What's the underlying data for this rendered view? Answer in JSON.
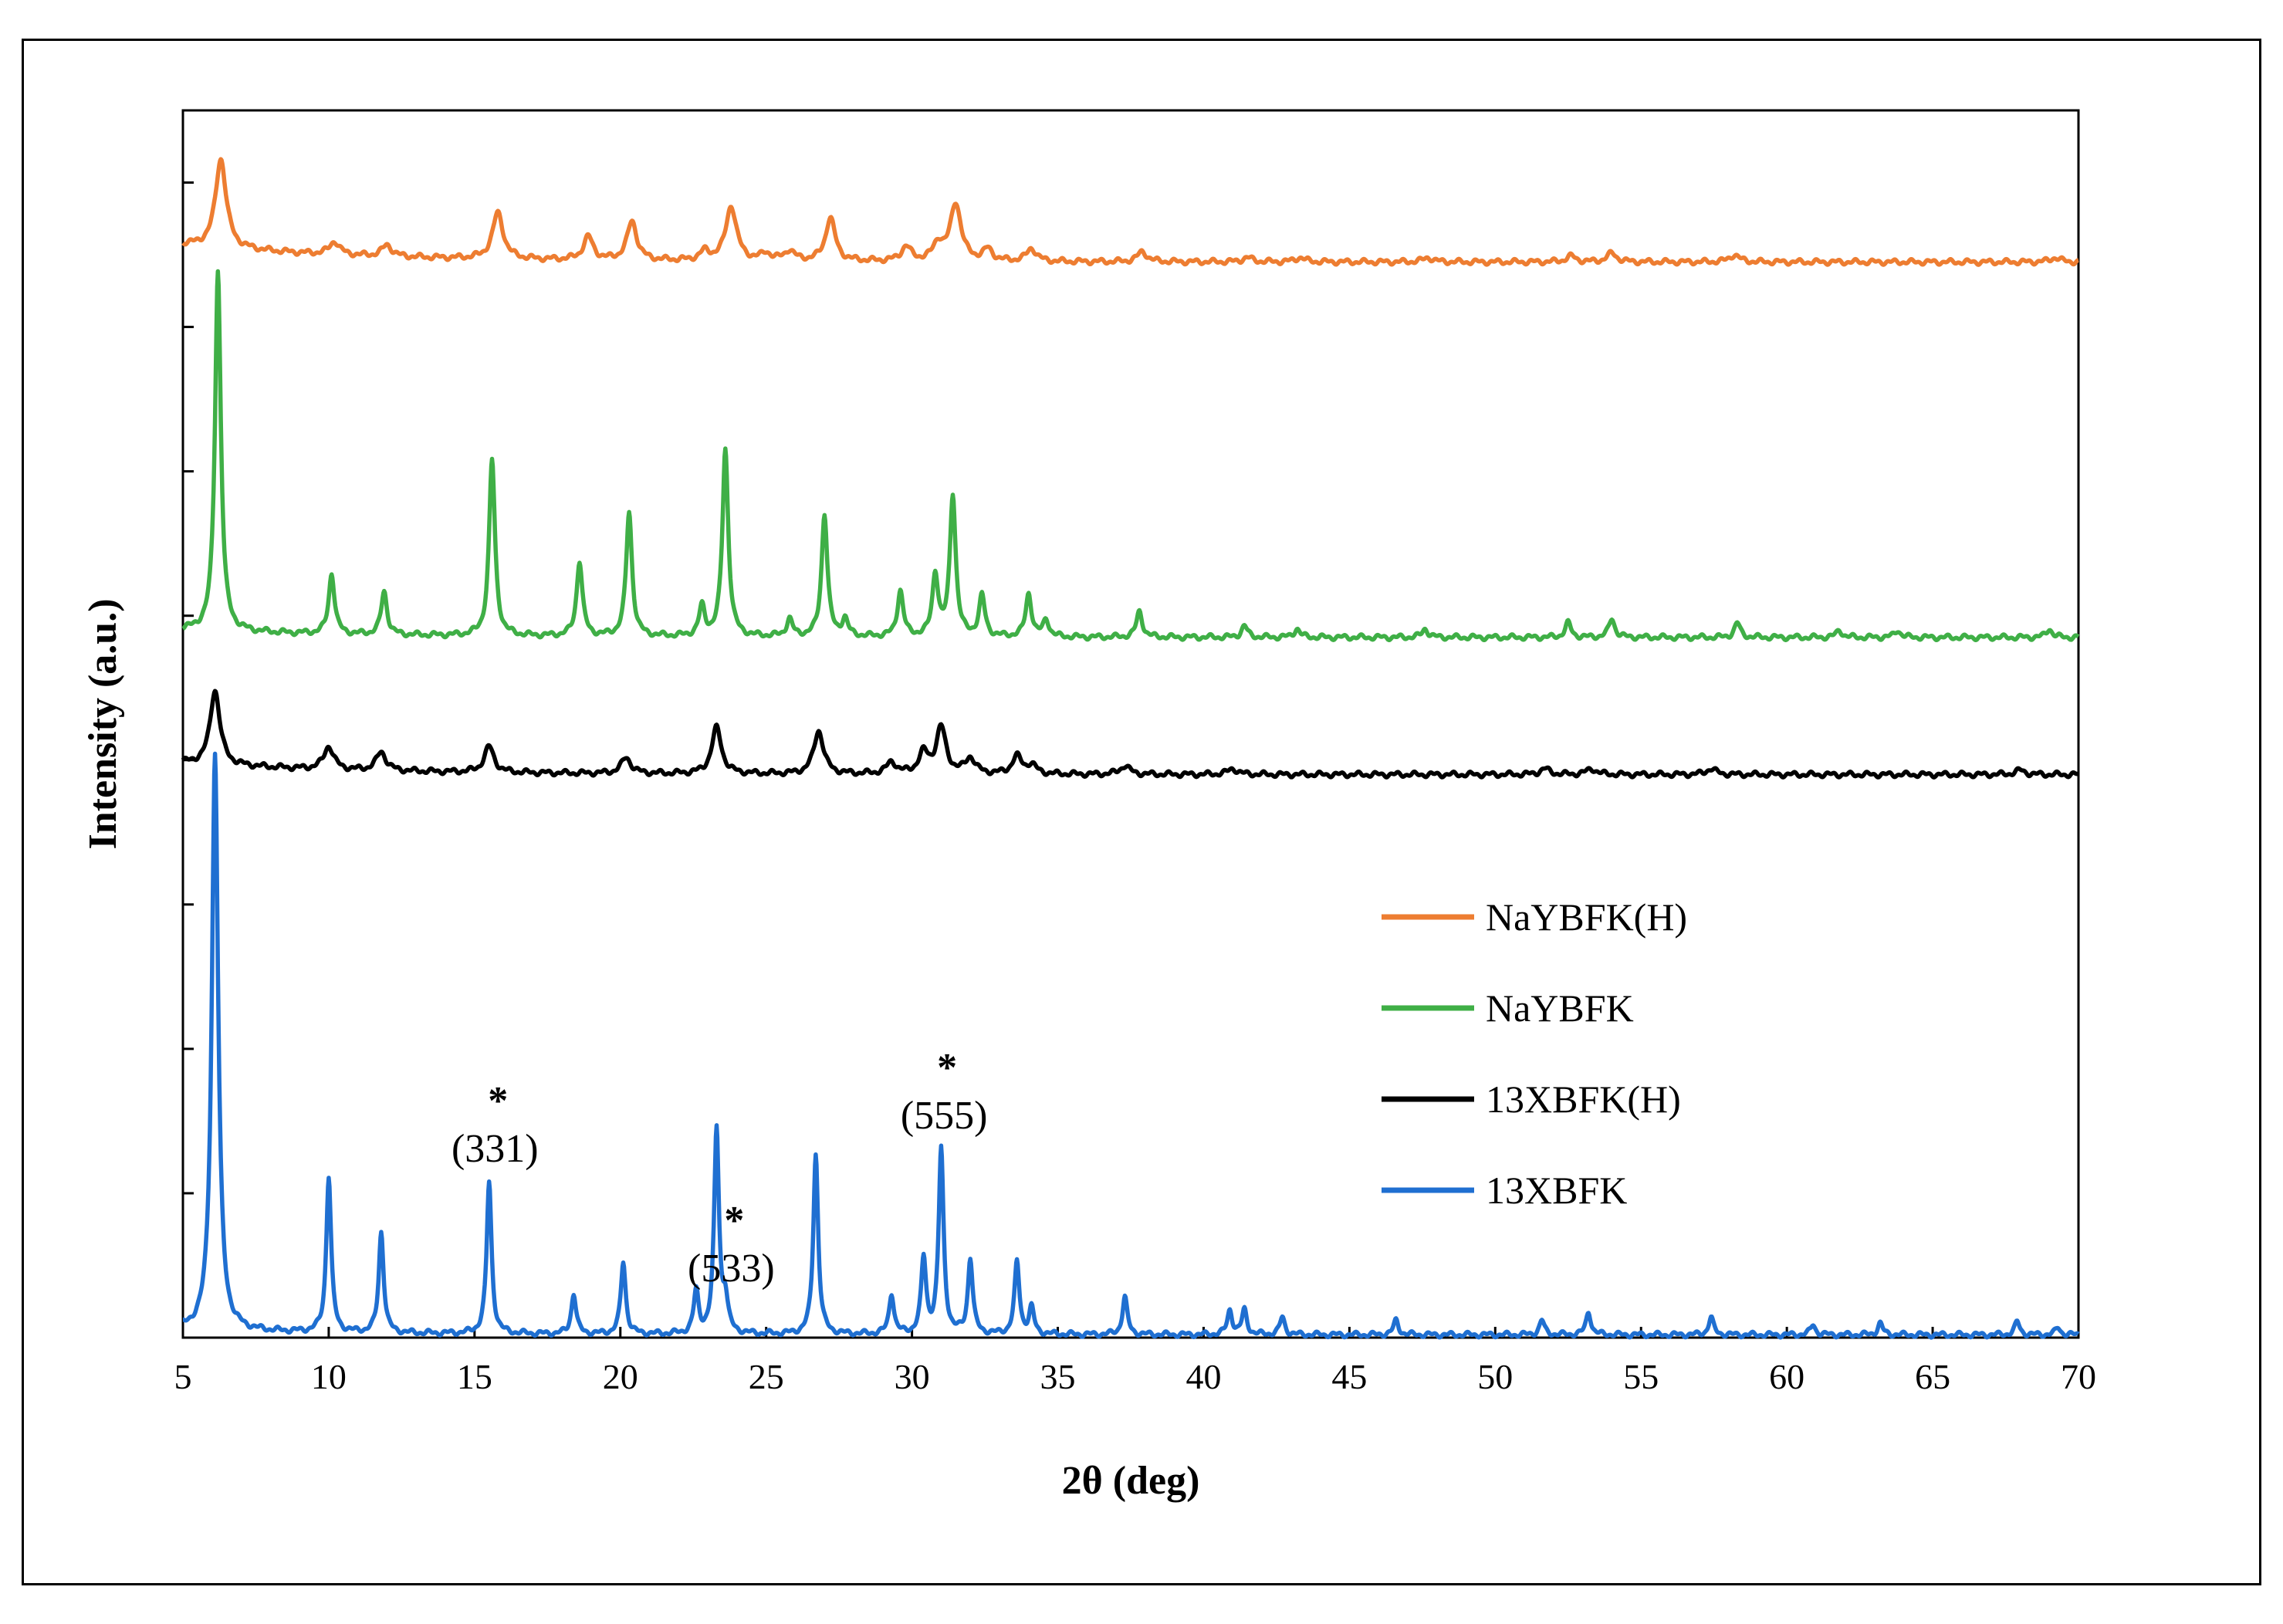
{
  "chart_data": {
    "type": "line",
    "title": "",
    "xlabel": "2θ (deg)",
    "ylabel": "Intensity (a.u.)",
    "xlim": [
      5,
      70
    ],
    "xticks": [
      5,
      10,
      15,
      20,
      25,
      30,
      35,
      40,
      45,
      50,
      55,
      60,
      65,
      70
    ],
    "xtick_labels": [
      "5",
      "10",
      "15",
      "20",
      "25",
      "30",
      "35",
      "40",
      "45",
      "50",
      "55",
      "60",
      "65",
      "70"
    ],
    "y_ticks_labeled": false,
    "grid": false,
    "legend": "right-middle",
    "series": [
      {
        "name": "NaYBFK(H)",
        "color": "#ED7D31",
        "offset": 7.45,
        "baseline": 0.12,
        "peaks": [
          [
            6.3,
            0.62,
            0.22
          ],
          [
            10.2,
            0.09,
            0.2
          ],
          [
            12.0,
            0.08,
            0.2
          ],
          [
            15.8,
            0.32,
            0.22
          ],
          [
            18.9,
            0.16,
            0.2
          ],
          [
            20.4,
            0.27,
            0.2
          ],
          [
            22.9,
            0.06,
            0.2
          ],
          [
            23.8,
            0.38,
            0.22
          ],
          [
            25.0,
            0.05,
            0.2
          ],
          [
            25.8,
            0.07,
            0.2
          ],
          [
            27.2,
            0.3,
            0.2
          ],
          [
            29.8,
            0.1,
            0.2
          ],
          [
            30.9,
            0.12,
            0.2
          ],
          [
            31.5,
            0.4,
            0.22
          ],
          [
            32.6,
            0.08,
            0.2
          ],
          [
            34.1,
            0.09,
            0.2
          ],
          [
            37.9,
            0.07,
            0.2
          ],
          [
            41.5,
            0.03,
            0.2
          ],
          [
            43.3,
            0.03,
            0.2
          ],
          [
            47.7,
            0.03,
            0.2
          ],
          [
            52.6,
            0.04,
            0.2
          ],
          [
            54.0,
            0.06,
            0.2
          ],
          [
            58.2,
            0.05,
            0.2
          ],
          [
            69.2,
            0.03,
            0.2
          ]
        ]
      },
      {
        "name": "NaYBFK",
        "color": "#3FAF46",
        "offset": 4.85,
        "baseline": 0.05,
        "peaks": [
          [
            6.2,
            2.5,
            0.12
          ],
          [
            10.1,
            0.42,
            0.12
          ],
          [
            11.9,
            0.3,
            0.12
          ],
          [
            15.6,
            1.22,
            0.12
          ],
          [
            18.6,
            0.52,
            0.12
          ],
          [
            20.3,
            0.86,
            0.12
          ],
          [
            22.8,
            0.2,
            0.12
          ],
          [
            23.6,
            1.3,
            0.12
          ],
          [
            25.8,
            0.12,
            0.12
          ],
          [
            27.0,
            0.85,
            0.12
          ],
          [
            27.7,
            0.12,
            0.12
          ],
          [
            29.6,
            0.32,
            0.12
          ],
          [
            30.8,
            0.43,
            0.12
          ],
          [
            31.4,
            0.98,
            0.12
          ],
          [
            32.4,
            0.28,
            0.12
          ],
          [
            34.0,
            0.3,
            0.12
          ],
          [
            34.6,
            0.12,
            0.12
          ],
          [
            37.8,
            0.18,
            0.12
          ],
          [
            41.4,
            0.08,
            0.12
          ],
          [
            43.2,
            0.06,
            0.12
          ],
          [
            47.6,
            0.06,
            0.12
          ],
          [
            52.5,
            0.1,
            0.12
          ],
          [
            54.0,
            0.13,
            0.12
          ],
          [
            58.3,
            0.1,
            0.12
          ],
          [
            61.8,
            0.05,
            0.12
          ],
          [
            63.8,
            0.05,
            0.12
          ],
          [
            69.0,
            0.06,
            0.12
          ]
        ]
      },
      {
        "name": "13XBFK(H)",
        "color": "#000000",
        "offset": 3.9,
        "baseline": 0.08,
        "peaks": [
          [
            6.1,
            0.52,
            0.2
          ],
          [
            10.0,
            0.16,
            0.2
          ],
          [
            11.8,
            0.13,
            0.2
          ],
          [
            15.5,
            0.18,
            0.2
          ],
          [
            20.2,
            0.11,
            0.2
          ],
          [
            23.3,
            0.32,
            0.2
          ],
          [
            26.8,
            0.3,
            0.2
          ],
          [
            29.3,
            0.08,
            0.2
          ],
          [
            30.4,
            0.14,
            0.2
          ],
          [
            31.0,
            0.32,
            0.2
          ],
          [
            32.0,
            0.11,
            0.2
          ],
          [
            33.6,
            0.12,
            0.2
          ],
          [
            34.1,
            0.06,
            0.2
          ],
          [
            37.3,
            0.06,
            0.2
          ],
          [
            41.0,
            0.04,
            0.2
          ],
          [
            51.7,
            0.04,
            0.2
          ],
          [
            53.3,
            0.04,
            0.2
          ],
          [
            57.4,
            0.04,
            0.2
          ],
          [
            68.0,
            0.03,
            0.2
          ]
        ]
      },
      {
        "name": "13XBFK",
        "color": "#1F6FD1",
        "offset": 0.02,
        "baseline": 0.03,
        "peaks": [
          [
            6.1,
            4.0,
            0.13
          ],
          [
            10.0,
            1.08,
            0.1
          ],
          [
            11.8,
            0.7,
            0.1
          ],
          [
            15.5,
            1.05,
            0.1
          ],
          [
            18.4,
            0.28,
            0.1
          ],
          [
            20.1,
            0.5,
            0.1
          ],
          [
            22.6,
            0.29,
            0.1
          ],
          [
            23.3,
            1.42,
            0.1
          ],
          [
            23.6,
            0.22,
            0.1
          ],
          [
            26.7,
            1.25,
            0.1
          ],
          [
            29.3,
            0.28,
            0.1
          ],
          [
            30.4,
            0.52,
            0.1
          ],
          [
            31.0,
            1.28,
            0.1
          ],
          [
            32.0,
            0.52,
            0.1
          ],
          [
            33.6,
            0.5,
            0.1
          ],
          [
            34.1,
            0.18,
            0.1
          ],
          [
            37.3,
            0.26,
            0.1
          ],
          [
            40.9,
            0.17,
            0.1
          ],
          [
            41.4,
            0.17,
            0.1
          ],
          [
            42.7,
            0.12,
            0.1
          ],
          [
            46.6,
            0.1,
            0.1
          ],
          [
            51.6,
            0.1,
            0.1
          ],
          [
            53.2,
            0.16,
            0.1
          ],
          [
            57.4,
            0.12,
            0.1
          ],
          [
            60.9,
            0.07,
            0.1
          ],
          [
            63.2,
            0.08,
            0.1
          ],
          [
            67.9,
            0.09,
            0.1
          ],
          [
            69.3,
            0.05,
            0.1
          ]
        ]
      }
    ],
    "annotations": [
      {
        "text": "(331)",
        "x": 15.7,
        "star": "*"
      },
      {
        "text": "(533)",
        "x": 23.8,
        "star": "*"
      },
      {
        "text": "(555)",
        "x": 31.1,
        "star": "*"
      }
    ]
  }
}
